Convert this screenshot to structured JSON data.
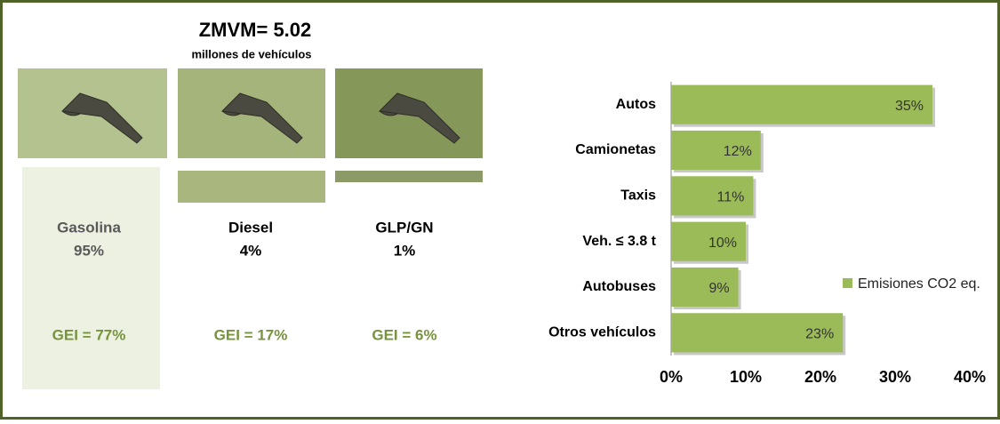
{
  "header": {
    "title": "ZMVM= 5.02",
    "subtitle": "millones de vehículos"
  },
  "fuels": [
    {
      "name": "Gasolina",
      "share": "95%",
      "gei": "GEI = 77%"
    },
    {
      "name": "Diesel",
      "share": "4%",
      "gei": "GEI = 17%"
    },
    {
      "name": "GLP/GN",
      "share": "1%",
      "gei": "GEI = 6%"
    }
  ],
  "chart_data": {
    "type": "bar",
    "orientation": "horizontal",
    "categories": [
      "Autos",
      "Camionetas",
      "Taxis",
      "Veh. ≤ 3.8 t",
      "Autobuses",
      "Otros vehículos"
    ],
    "series": [
      {
        "name": "Emisiones CO2 eq.",
        "color": "#9bbb59",
        "values": [
          35,
          12,
          11,
          10,
          9,
          23
        ],
        "value_labels": [
          "35%",
          "12%",
          "11%",
          "10%",
          "9%",
          "23%"
        ]
      }
    ],
    "xlim": [
      0,
      40
    ],
    "xticks": [
      {
        "value": 0,
        "label": "0%"
      },
      {
        "value": 10,
        "label": "10%"
      },
      {
        "value": 20,
        "label": "20%"
      },
      {
        "value": 30,
        "label": "30%"
      },
      {
        "value": 40,
        "label": "40%"
      }
    ],
    "legend": "right"
  }
}
